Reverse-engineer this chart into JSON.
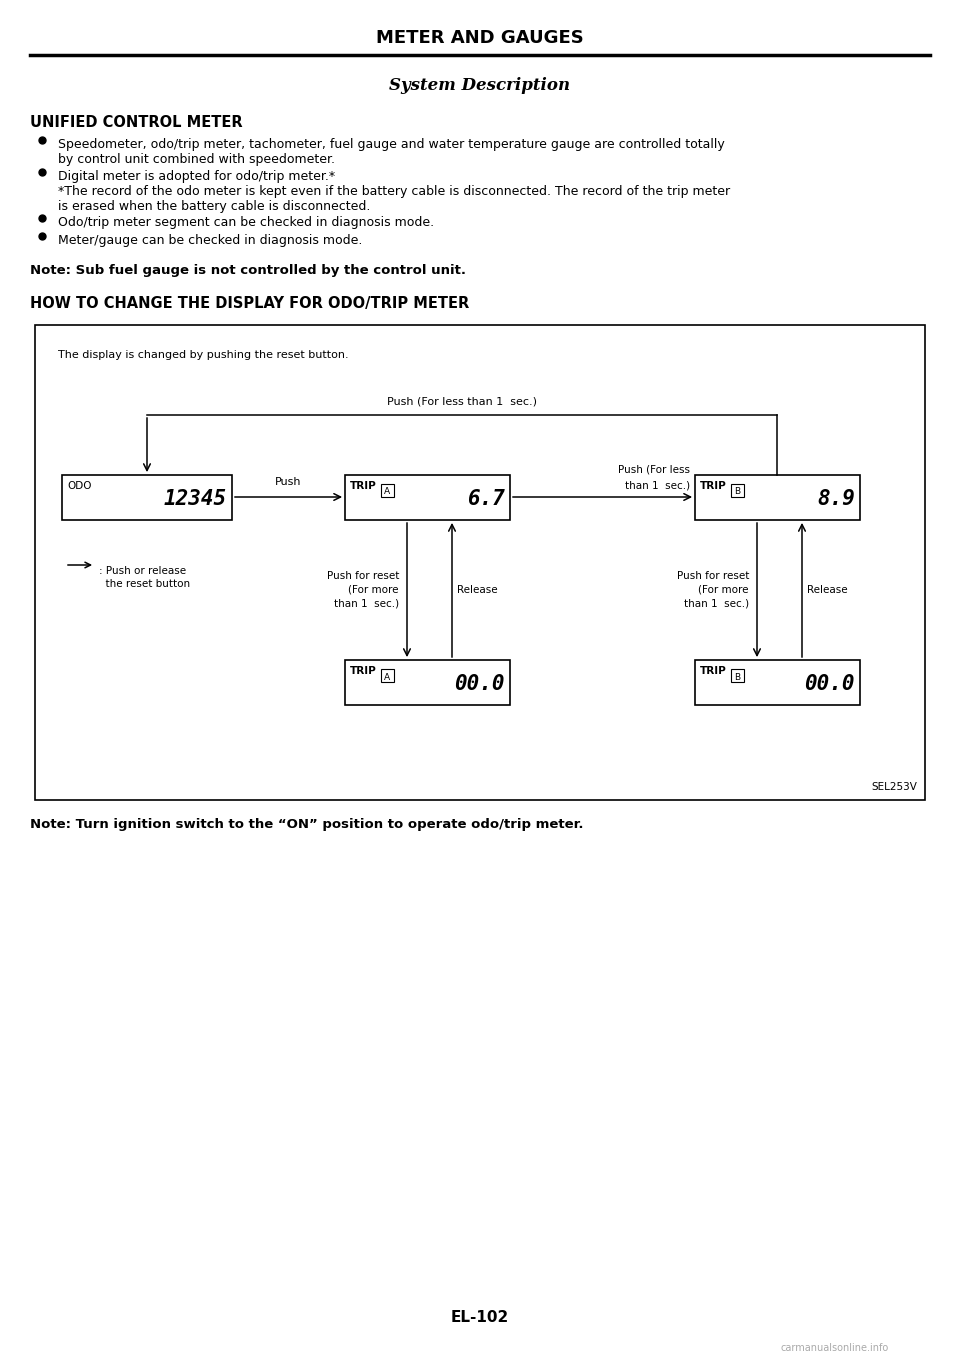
{
  "page_title": "METER AND GAUGES",
  "section_title": "System Description",
  "section_heading": "UNIFIED CONTROL METER",
  "bullet1_line1": "Speedometer, odo/trip meter, tachometer, fuel gauge and water temperature gauge are controlled totally",
  "bullet1_line2": "by control unit combined with speedometer.",
  "bullet2_line1": "Digital meter is adopted for odo/trip meter.*",
  "bullet2_line2": "*The record of the odo meter is kept even if the battery cable is disconnected. The record of the trip meter",
  "bullet2_line3": "is erased when the battery cable is disconnected.",
  "bullet3": "Odo/trip meter segment can be checked in diagnosis mode.",
  "bullet4": "Meter/gauge can be checked in diagnosis mode.",
  "note1": "Note: Sub fuel gauge is not controlled by the control unit.",
  "section_heading2": "HOW TO CHANGE THE DISPLAY FOR ODO/TRIP METER",
  "diagram_caption": "The display is changed by pushing the reset button.",
  "label_top_arrow": "Push (For less than 1  sec.)",
  "label_push": "Push",
  "label_push_less_1": "Push (For less",
  "label_push_less_2": "than 1  sec.)",
  "label_push_reset1_1": "Push for reset",
  "label_push_reset1_2": "(For more",
  "label_push_reset1_3": "than 1  sec.)",
  "label_release1": "Release",
  "label_push_reset2_1": "Push for reset",
  "label_push_reset2_2": "(For more",
  "label_push_reset2_3": "than 1  sec.)",
  "label_release2": "Release",
  "legend_arrow_text1": ": Push or release",
  "legend_arrow_text2": "  the reset button",
  "note2": "Note: Turn ignition switch to the “ON” position to operate odo/trip meter.",
  "page_number": "EL-102",
  "sel_code": "SEL253V",
  "bg_color": "#ffffff",
  "text_color": "#000000"
}
